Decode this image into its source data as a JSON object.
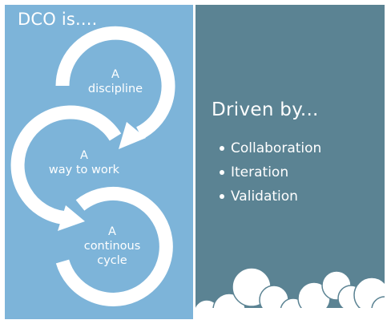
{
  "left_panel": {
    "title": "DCO is....",
    "cycle_labels": [
      {
        "lines": [
          "A",
          "discipline"
        ]
      },
      {
        "lines": [
          "A",
          "way to work"
        ]
      },
      {
        "lines": [
          "A",
          "continous",
          "cycle"
        ]
      }
    ]
  },
  "right_panel": {
    "title": "Driven by...",
    "bullets": [
      "Collaboration",
      "Iteration",
      "Validation"
    ]
  },
  "colors": {
    "left_panel": "#7db4d9",
    "right_panel": "#5b8393",
    "arrows": "#ffffff",
    "clouds": "#ffffff"
  }
}
